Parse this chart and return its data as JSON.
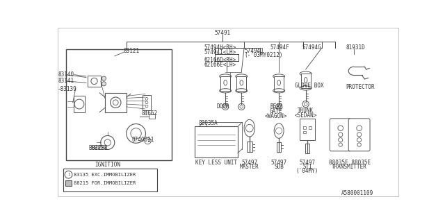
{
  "bg_color": "#f5f5f5",
  "diagram_id": "A580001109",
  "font_family": "monospace",
  "ignition_label": "IGNITION",
  "legend_entries": [
    {
      "num": "83135",
      "text": "EXC.IMMOBILIZER"
    },
    {
      "num": "88215",
      "text": "FOR.IMMOBILIZER"
    }
  ]
}
